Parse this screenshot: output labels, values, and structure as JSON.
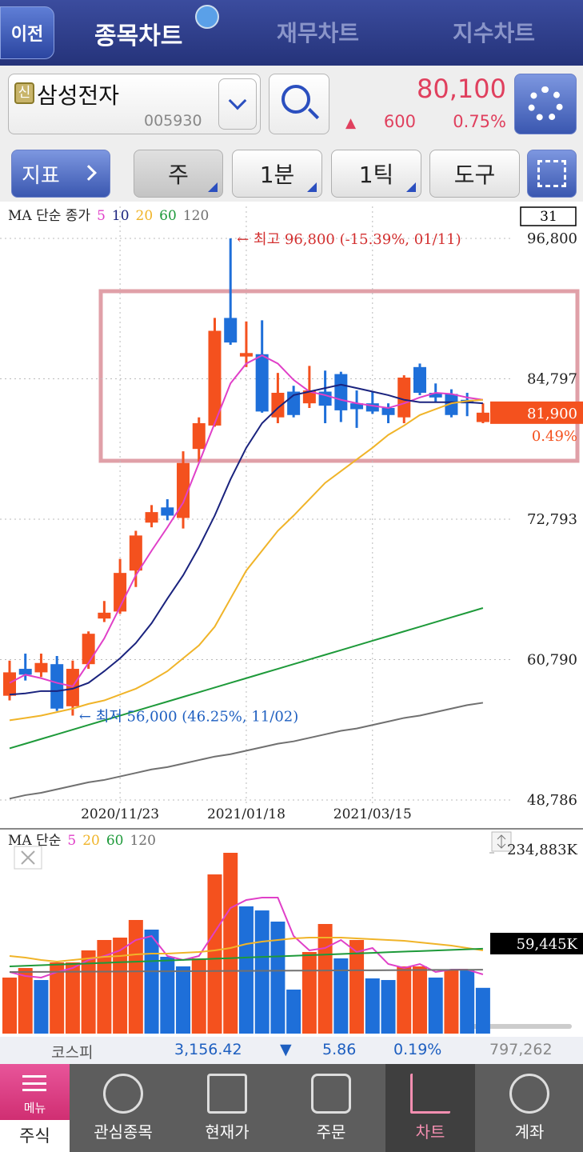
{
  "header": {
    "back": "이전",
    "tabs": [
      "종목차트",
      "재무차트",
      "지수차트"
    ]
  },
  "stock": {
    "badge": "신",
    "name": "삼성전자",
    "code": "005930",
    "price": "80,100",
    "change_sign": "▲",
    "change": "600",
    "change_pct": "0.75%"
  },
  "toolbar": {
    "indicator": "지표",
    "buttons": [
      "주",
      "1분",
      "1틱",
      "도구"
    ]
  },
  "chart_data": [
    {
      "type": "candlestick",
      "legend_label": "MA 단순 종가",
      "count_label": "31",
      "categories": [
        null,
        null,
        null,
        null,
        null,
        null,
        null,
        "2020/11/23",
        null,
        null,
        null,
        null,
        null,
        null,
        null,
        "2021/01/18",
        null,
        null,
        null,
        null,
        null,
        null,
        null,
        "2021/03/15",
        null,
        null,
        null,
        null,
        null,
        null,
        null
      ],
      "open": [
        57700,
        60000,
        59700,
        60400,
        56800,
        60400,
        64300,
        64900,
        68400,
        72500,
        73800,
        72900,
        78800,
        80800,
        90000,
        86700,
        86900,
        81500,
        83700,
        82700,
        83700,
        85200,
        82700,
        82700,
        82300,
        81500,
        85800,
        83600,
        83500,
        83000,
        81100
      ],
      "high": [
        60700,
        61300,
        61300,
        61100,
        60700,
        63200,
        65800,
        69400,
        71800,
        74000,
        74500,
        78600,
        81500,
        90000,
        96800,
        89700,
        89800,
        85300,
        84200,
        85900,
        85500,
        85400,
        83800,
        83700,
        82700,
        85100,
        86100,
        84400,
        83900,
        83600,
        82700
      ],
      "low": [
        57300,
        59000,
        59300,
        56400,
        56000,
        60000,
        64000,
        64700,
        67000,
        72100,
        72700,
        72000,
        77700,
        80700,
        87700,
        85800,
        81900,
        81000,
        81500,
        82300,
        81000,
        81100,
        80600,
        81800,
        81000,
        81000,
        83400,
        82800,
        81500,
        81600,
        81000
      ],
      "close": [
        59700,
        59500,
        60500,
        56600,
        60000,
        63000,
        64800,
        68200,
        71400,
        73400,
        73100,
        77600,
        81000,
        88900,
        87900,
        87000,
        82000,
        83600,
        81700,
        83800,
        82500,
        82100,
        82200,
        82000,
        81700,
        84900,
        83600,
        83200,
        81700,
        82700,
        81900
      ],
      "up_color": "#f4511e",
      "down_color": "#1e6fd9",
      "series": [
        {
          "name": "5",
          "color": "#e040c8",
          "values": [
            58800,
            59500,
            59200,
            58800,
            58500,
            60500,
            62600,
            65300,
            68000,
            70100,
            72100,
            74200,
            77600,
            81000,
            84400,
            86100,
            86800,
            86100,
            84700,
            83700,
            83400,
            83000,
            82700,
            82500,
            82300,
            82700,
            83200,
            83600,
            83500,
            83200,
            83000
          ]
        },
        {
          "name": "10",
          "color": "#1a237e",
          "values": [
            57800,
            57900,
            58100,
            58100,
            58300,
            58800,
            59800,
            60900,
            62200,
            63900,
            66000,
            68000,
            70400,
            73100,
            76200,
            78900,
            81000,
            82300,
            83400,
            83700,
            84000,
            84300,
            84000,
            83700,
            83400,
            83000,
            82800,
            82800,
            82800,
            82800,
            82700
          ]
        },
        {
          "name": "20",
          "color": "#f0b429",
          "values": [
            55600,
            55800,
            56000,
            56300,
            56600,
            57000,
            57300,
            57800,
            58300,
            59000,
            59800,
            60900,
            62000,
            63600,
            66000,
            68400,
            70100,
            71800,
            73100,
            74500,
            75900,
            76900,
            77900,
            78900,
            80000,
            80800,
            81700,
            82200,
            82700,
            82900,
            83000
          ]
        },
        {
          "name": "60",
          "color": "#1e9a3a",
          "values": [
            53200,
            53600,
            54000,
            54400,
            54800,
            55200,
            55600,
            56000,
            56400,
            56800,
            57200,
            57600,
            58000,
            58400,
            58800,
            59200,
            59600,
            60000,
            60400,
            60800,
            61200,
            61600,
            62000,
            62400,
            62800,
            63200,
            63600,
            64000,
            64400,
            64800,
            65200
          ]
        },
        {
          "name": "120",
          "color": "#707070",
          "values": [
            48900,
            49200,
            49400,
            49700,
            50000,
            50300,
            50500,
            50800,
            51100,
            51400,
            51600,
            51900,
            52200,
            52500,
            52700,
            53000,
            53300,
            53600,
            53800,
            54100,
            54400,
            54700,
            54900,
            55200,
            55500,
            55800,
            56000,
            56300,
            56600,
            56900,
            57100
          ]
        }
      ],
      "ylim": [
        48786,
        96800
      ],
      "yticks": [
        {
          "value": 96800,
          "label": "96,800"
        },
        {
          "value": 84797,
          "label": "84,797"
        },
        {
          "value": 72793,
          "label": "72,793"
        },
        {
          "value": 60790,
          "label": "60,790"
        },
        {
          "value": 48786,
          "label": "48,786"
        }
      ],
      "grid": true,
      "annotations": [
        {
          "text": "← 최고 96,800 (-15.39%, 01/11)",
          "color": "#d32f2f"
        },
        {
          "text": "← 최저 56,000 (46.25%, 11/02)",
          "color": "#1e5fc0"
        }
      ],
      "current_label": "81,900",
      "current_change": "0.49%"
    },
    {
      "type": "bar",
      "legend_label": "MA 단순",
      "values": [
        72800,
        85200,
        69600,
        92500,
        92500,
        108100,
        121600,
        124700,
        147600,
        135100,
        99800,
        87300,
        97700,
        206800,
        234883,
        165300,
        160000,
        145500,
        57200,
        106000,
        142400,
        97700,
        121600,
        71700,
        69600,
        87300,
        87300,
        72800,
        82100,
        82100,
        59445
      ],
      "colors": [
        "#f4511e",
        "#f4511e",
        "#1e6fd9",
        "#f4511e",
        "#f4511e",
        "#f4511e",
        "#f4511e",
        "#f4511e",
        "#f4511e",
        "#1e6fd9",
        "#1e6fd9",
        "#1e6fd9",
        "#f4511e",
        "#f4511e",
        "#f4511e",
        "#1e6fd9",
        "#1e6fd9",
        "#1e6fd9",
        "#1e6fd9",
        "#f4511e",
        "#f4511e",
        "#1e6fd9",
        "#f4511e",
        "#1e6fd9",
        "#1e6fd9",
        "#f4511e",
        "#f4511e",
        "#1e6fd9",
        "#f4511e",
        "#1e6fd9",
        "#1e6fd9"
      ],
      "series": [
        {
          "name": "5",
          "color": "#e040c8",
          "values": [
            80000,
            74800,
            72800,
            80000,
            85200,
            95600,
            100800,
            108100,
            121600,
            126800,
            100800,
            95600,
            100800,
            132000,
            163200,
            173600,
            176700,
            176700,
            126800,
            108100,
            111200,
            121600,
            106000,
            111200,
            90400,
            85200,
            90400,
            80000,
            83100,
            83100,
            76900
          ]
        },
        {
          "name": "20",
          "color": "#f0b429",
          "values": [
            100800,
            98700,
            95600,
            93500,
            95600,
            97700,
            99800,
            100800,
            102900,
            103900,
            103900,
            105000,
            106000,
            108100,
            111200,
            116400,
            119500,
            121600,
            123700,
            124700,
            124700,
            124700,
            123700,
            122700,
            121600,
            120600,
            118500,
            116400,
            114300,
            111200,
            108100
          ]
        },
        {
          "name": "60",
          "color": "#1e9a3a",
          "values": [
            87300,
            88100,
            88800,
            89600,
            90400,
            91100,
            91900,
            92700,
            93400,
            94200,
            95000,
            95700,
            96500,
            97300,
            98000,
            98800,
            99600,
            100300,
            101100,
            101900,
            102600,
            103400,
            104200,
            104900,
            105700,
            106500,
            107200,
            108000,
            108800,
            109500,
            110300
          ]
        },
        {
          "name": "120",
          "color": "#707070",
          "values": [
            80000,
            80100,
            80200,
            80300,
            80400,
            80500,
            80600,
            80700,
            80800,
            80900,
            81000,
            81100,
            81200,
            81300,
            81400,
            81500,
            81600,
            81700,
            81800,
            81900,
            82000,
            82100,
            82200,
            82300,
            82400,
            82500,
            82600,
            82700,
            82800,
            82900,
            83000
          ]
        }
      ],
      "ylim": [
        0,
        234883
      ],
      "yticks": [
        {
          "value": 234883,
          "label": "234,883K"
        }
      ],
      "current_label": "59,445K"
    }
  ],
  "market": {
    "name": "코스피",
    "index": "3,156.42",
    "sign": "▼",
    "change": "5.86",
    "change_pct": "0.19%",
    "volume": "797,262"
  },
  "nav": {
    "menu": "메뉴",
    "tabs": [
      "주식",
      "관심종목",
      "현재가",
      "주문",
      "차트",
      "계좌"
    ]
  }
}
